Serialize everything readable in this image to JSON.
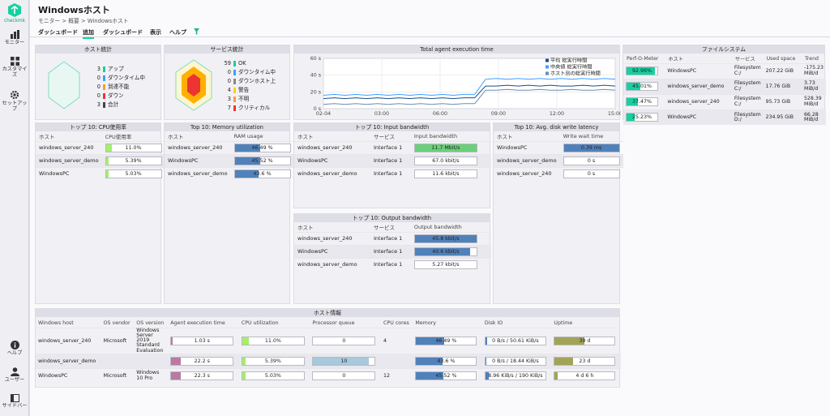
{
  "app": {
    "logo_text": "checkmk"
  },
  "sidebar": {
    "monitor": "モニター",
    "customize": "カスタマイズ",
    "setup": "セットアップ",
    "help": "ヘルプ",
    "user": "ユーザー",
    "sidebar": "サイドバー"
  },
  "page": {
    "title": "Windowsホスト",
    "breadcrumb": "モニター > 概要 > Windowsホスト"
  },
  "menu": [
    "ダッシュボード",
    "追加",
    "ダッシュボード",
    "表示",
    "ヘルプ"
  ],
  "host_stats": {
    "title": "ホスト統計",
    "rows": [
      {
        "n": "3",
        "label": "アップ",
        "color": "#15d1a0"
      },
      {
        "n": "0",
        "label": "ダウンタイム中",
        "color": "#3ca0ff"
      },
      {
        "n": "0",
        "label": "到達不能",
        "color": "#ff9932"
      },
      {
        "n": "0",
        "label": "ダウン",
        "color": "#ee3333"
      },
      {
        "n": "3",
        "label": "合計",
        "color": "#444444"
      }
    ]
  },
  "service_stats": {
    "title": "サービス統計",
    "rows": [
      {
        "n": "59",
        "label": "OK",
        "color": "#15d1a0"
      },
      {
        "n": "0",
        "label": "ダウンタイム中",
        "color": "#3ca0ff"
      },
      {
        "n": "0",
        "label": "ダウンホスト上",
        "color": "#888888"
      },
      {
        "n": "4",
        "label": "警告",
        "color": "#ffd000"
      },
      {
        "n": "3",
        "label": "不明",
        "color": "#ff9932"
      },
      {
        "n": "7",
        "label": "クリティカル",
        "color": "#ee3333"
      }
    ]
  },
  "agent_chart": {
    "title": "Total agent execution time",
    "legend": [
      "平均 総実行時間",
      "中央値 総実行時間",
      "ホスト別の総実行時間"
    ]
  },
  "chart_data": {
    "type": "line",
    "title": "Total agent execution time",
    "xlabel": "",
    "ylabel": "",
    "x_ticks": [
      "02-04",
      "03:00",
      "06:00",
      "09:00",
      "12:00",
      "15:00"
    ],
    "y_ticks": [
      "0 s",
      "20 s",
      "40 s",
      "60 s"
    ],
    "ylim": [
      0,
      60
    ],
    "grid": true,
    "legend_position": "top-right",
    "x": [
      0,
      0.5,
      1,
      1.5,
      2,
      2.5,
      3,
      3.5,
      4,
      4.5,
      5,
      5.5,
      6,
      6.5,
      7,
      7.5,
      8,
      8.5,
      9,
      9.5,
      10,
      10.5,
      11,
      11.5,
      12,
      12.5,
      13,
      13.5
    ],
    "series": [
      {
        "name": "平均 総実行時間",
        "color": "#1c4e8f",
        "values": [
          12,
          13,
          12,
          13,
          12,
          13,
          12,
          13,
          12,
          13,
          12,
          13,
          12,
          13,
          13,
          27,
          27,
          28,
          27,
          28,
          27,
          28,
          27,
          27,
          28,
          27,
          28,
          27
        ]
      },
      {
        "name": "中央値 総実行時間",
        "color": "#3ca0ff",
        "values": [
          16,
          17,
          16,
          17,
          16,
          17,
          16,
          17,
          16,
          17,
          16,
          17,
          16,
          17,
          17,
          35,
          36,
          35,
          36,
          35,
          36,
          35,
          36,
          35,
          36,
          35,
          36,
          35
        ]
      },
      {
        "name": "ホスト別の総実行時間",
        "color": "#6a8fb0",
        "values": [
          5,
          6,
          5,
          6,
          5,
          6,
          5,
          6,
          5,
          6,
          5,
          6,
          5,
          6,
          6,
          22,
          22,
          23,
          22,
          22,
          23,
          22,
          22,
          23,
          22,
          22,
          23,
          22
        ]
      }
    ]
  },
  "filesystem": {
    "title": "ファイルシステム",
    "headers": [
      "Perf-O-Meter",
      "ホスト",
      "サービス",
      "Used space",
      "Trend"
    ],
    "rows": [
      {
        "pct": "92.96%",
        "fill": 0.93,
        "host": "WindowsPC",
        "service": "Filesystem C:/",
        "used": "207.22 GiB",
        "trend": "-175.23 MiB/d"
      },
      {
        "pct": "45.01%",
        "fill": 0.45,
        "host": "windows_server_demo",
        "service": "Filesystem C:/",
        "used": "17.76 GiB",
        "trend": "3.73 MiB/d"
      },
      {
        "pct": "37.47%",
        "fill": 0.37,
        "host": "windows_server_240",
        "service": "Filesystem C:/",
        "used": "95.73 GiB",
        "trend": "528.39 MiB/d"
      },
      {
        "pct": "25.23%",
        "fill": 0.25,
        "host": "WindowsPC",
        "service": "Filesystem D:/",
        "used": "234.95 GiB",
        "trend": "66.28 MiB/d"
      }
    ]
  },
  "cpu_top": {
    "title": "トップ 10: CPU使用率",
    "headers": [
      "ホスト",
      "CPU使用率"
    ],
    "rows": [
      {
        "host": "windows_server_240",
        "val": "11.0%",
        "fill": 0.11
      },
      {
        "host": "windows_server_demo",
        "val": "5.39%",
        "fill": 0.054
      },
      {
        "host": "WindowsPC",
        "val": "5.03%",
        "fill": 0.05
      }
    ]
  },
  "mem_top": {
    "title": "Top 10: Memory utilization",
    "headers": [
      "ホスト",
      "RAM usage"
    ],
    "rows": [
      {
        "host": "windows_server_240",
        "val": "46.49 %",
        "fill": 0.465
      },
      {
        "host": "WindowsPC",
        "val": "45.52 %",
        "fill": 0.455
      },
      {
        "host": "windows_server_demo",
        "val": "43.6 %",
        "fill": 0.436
      }
    ]
  },
  "in_top": {
    "title": "トップ 10: Input bandwidth",
    "headers": [
      "ホスト",
      "サービス",
      "Input bandwidth"
    ],
    "rows": [
      {
        "host": "windows_server_240",
        "svc": "Interface 1",
        "val": "11.7 Mbit/s",
        "fill": 1.0
      },
      {
        "host": "WindowsPC",
        "svc": "Interface 1",
        "val": "67.0 kbit/s",
        "fill": 0.0
      },
      {
        "host": "windows_server_demo",
        "svc": "Interface 1",
        "val": "11.6 kbit/s",
        "fill": 0.0
      }
    ]
  },
  "disk_top": {
    "title": "Top 10: Avg. disk write latency",
    "headers": [
      "ホスト",
      "Write wait time"
    ],
    "rows": [
      {
        "host": "WindowsPC",
        "val": "0.39 ms",
        "fill": 1.0
      },
      {
        "host": "windows_server_demo",
        "val": "0 s",
        "fill": 0.0
      },
      {
        "host": "windows_server_240",
        "val": "0 s",
        "fill": 0.0
      }
    ]
  },
  "out_top": {
    "title": "トップ 10: Output bandwidth",
    "headers": [
      "ホスト",
      "サービス",
      "Output bandwidth"
    ],
    "rows": [
      {
        "host": "windows_server_240",
        "svc": "Interface 1",
        "val": "45.8 kbit/s",
        "fill": 1.0
      },
      {
        "host": "WindowsPC",
        "svc": "Interface 1",
        "val": "40.6 kbit/s",
        "fill": 0.89
      },
      {
        "host": "windows_server_demo",
        "svc": "Interface 1",
        "val": "5.27 kbit/s",
        "fill": 0.0
      }
    ]
  },
  "host_info": {
    "title": "ホスト情報",
    "headers": [
      "Windows host",
      "OS vendor",
      "OS version",
      "Agent execution time",
      "CPU utilization",
      "Processor queue",
      "CPU cores",
      "Memory",
      "Disk IO",
      "Uptime"
    ],
    "rows": [
      {
        "host": "windows_server_240",
        "vendor": "Microsoft",
        "version": "Windows Server 2019 Standard Evaluation",
        "agent": "1.03 s",
        "agent_fill": 0.02,
        "cpu": "11.0%",
        "cpu_fill": 0.11,
        "queue": "0",
        "queue_fill": 0.0,
        "cores": "4",
        "mem": "46.49 %",
        "mem_fill": 0.465,
        "disk": "0 B/s / 50.61 KiB/s",
        "disk_fill": 0.03,
        "uptime": "39 d",
        "uptime_fill": 0.5
      },
      {
        "host": "windows_server_demo",
        "vendor": "",
        "version": "",
        "agent": "22.2 s",
        "agent_fill": 0.15,
        "cpu": "5.39%",
        "cpu_fill": 0.054,
        "queue": "10",
        "queue_fill": 0.9,
        "cores": "",
        "mem": "43.6 %",
        "mem_fill": 0.436,
        "disk": "0 B/s / 18.44 KiB/s",
        "disk_fill": 0.02,
        "uptime": "23 d",
        "uptime_fill": 0.3
      },
      {
        "host": "WindowsPC",
        "vendor": "Microsoft",
        "version": "Windows 10 Pro",
        "agent": "22.3 s",
        "agent_fill": 0.15,
        "cpu": "5.03%",
        "cpu_fill": 0.05,
        "queue": "0",
        "queue_fill": 0.0,
        "cores": "12",
        "mem": "45.52 %",
        "mem_fill": 0.455,
        "disk": "8.96 KiB/s / 190 KiB/s",
        "disk_fill": 0.05,
        "uptime": "4 d 6 h",
        "uptime_fill": 0.05
      }
    ]
  },
  "colors": {
    "accent": "#15d1a0",
    "cpu_bar": "#a5ee6c",
    "mem_bar": "#5081ba",
    "in_bar": "#6bd07a",
    "agent_bar": "#b97aa0",
    "queue_bar": "#a8c8dc",
    "uptime_bar": "#a3a358"
  }
}
